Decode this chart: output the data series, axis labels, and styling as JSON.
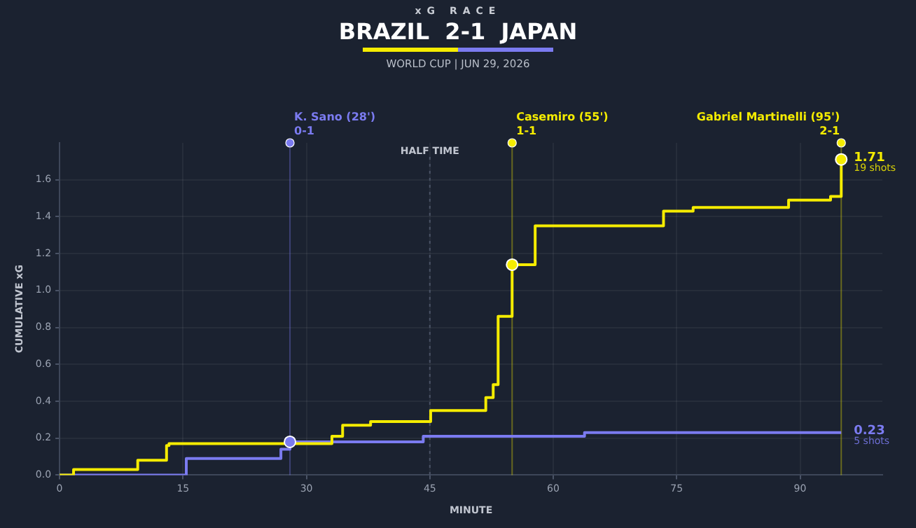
{
  "chart_data": {
    "type": "step",
    "title": "BRAZIL  2-1  JAPAN",
    "subtitle": "WORLD CUP | JUN 29, 2026",
    "xlabel": "MINUTE",
    "ylabel": "CUMULATIVE xG",
    "annotations": [
      "xG RACE",
      {
        "text": "K. Sano (28')\n0-1",
        "x": 28,
        "y": 1.8
      },
      {
        "text": "Casemiro (55')\n1-1",
        "x": 55,
        "y": 1.8
      },
      {
        "text": "Gabriel Martinelli (95')\n2-1",
        "x": 95,
        "y": 1.8
      },
      {
        "text": "19 shots",
        "x": 95,
        "y": 1.71
      },
      {
        "text": "5 shots",
        "x": 95,
        "y": 0.23
      }
    ],
    "series": [
      {
        "color": "#f5ec00",
        "x": [
          0,
          1.7,
          9.5,
          13,
          13.3,
          33.1,
          34.4,
          37.8,
          45.1,
          51.8,
          52.7,
          53.3,
          55,
          57.8,
          73.4,
          77,
          88.6,
          93.7,
          95
        ],
        "values": [
          0,
          0.03,
          0.08,
          0.16,
          0.17,
          0.21,
          0.27,
          0.29,
          0.35,
          0.42,
          0.49,
          0.86,
          1.14,
          1.35,
          1.43,
          1.45,
          1.49,
          1.51,
          1.71
        ],
        "value_labels": [
          null,
          null,
          null,
          null,
          null,
          null,
          null,
          null,
          null,
          null,
          null,
          null,
          null,
          null,
          null,
          null,
          null,
          null,
          "1.71"
        ]
      },
      {
        "color": "#7b7bf0",
        "x": [
          0,
          15.4,
          26.9,
          28,
          44.2,
          63.8,
          95
        ],
        "values": [
          0,
          0.09,
          0.14,
          0.18,
          0.21,
          0.23,
          0.23
        ],
        "value_labels": [
          null,
          null,
          null,
          null,
          null,
          null,
          "0.23"
        ]
      },
      {
        "type": "scatter",
        "marker": "circle",
        "color": "#f5ec00",
        "x": [
          55,
          95
        ],
        "values": [
          1.14,
          1.71
        ]
      },
      {
        "type": "scatter",
        "marker": "circle",
        "color": "#7b7bf0",
        "x": [
          28
        ],
        "values": [
          0.18
        ]
      }
    ],
    "xlim": [
      0,
      100
    ],
    "ylim": [
      0,
      1.8
    ],
    "xticks": [
      0,
      15,
      30,
      45,
      60,
      75,
      90
    ],
    "yticks": [
      {
        "value": 0,
        "label": "0.0"
      },
      {
        "value": 0.2,
        "label": "0.2"
      },
      {
        "value": 0.4,
        "label": "0.4"
      },
      {
        "value": 0.6,
        "label": "0.6"
      },
      {
        "value": 0.8,
        "label": "0.8"
      },
      {
        "value": 1,
        "label": "1.0"
      },
      {
        "value": 1.2,
        "label": "1.2"
      },
      {
        "value": 1.4,
        "label": "1.4"
      },
      {
        "value": 1.6,
        "label": "1.6"
      }
    ],
    "ref_lines": [
      {
        "axis": "x",
        "value": 45,
        "label": "HALF TIME",
        "line_style": "dotted"
      },
      {
        "axis": "x",
        "value": 28,
        "color": "#7b7bf0"
      },
      {
        "axis": "x",
        "value": 55,
        "color": "#f5ec00"
      },
      {
        "axis": "x",
        "value": 95,
        "color": "#f5ec00"
      }
    ],
    "grid": true,
    "legend": false
  }
}
